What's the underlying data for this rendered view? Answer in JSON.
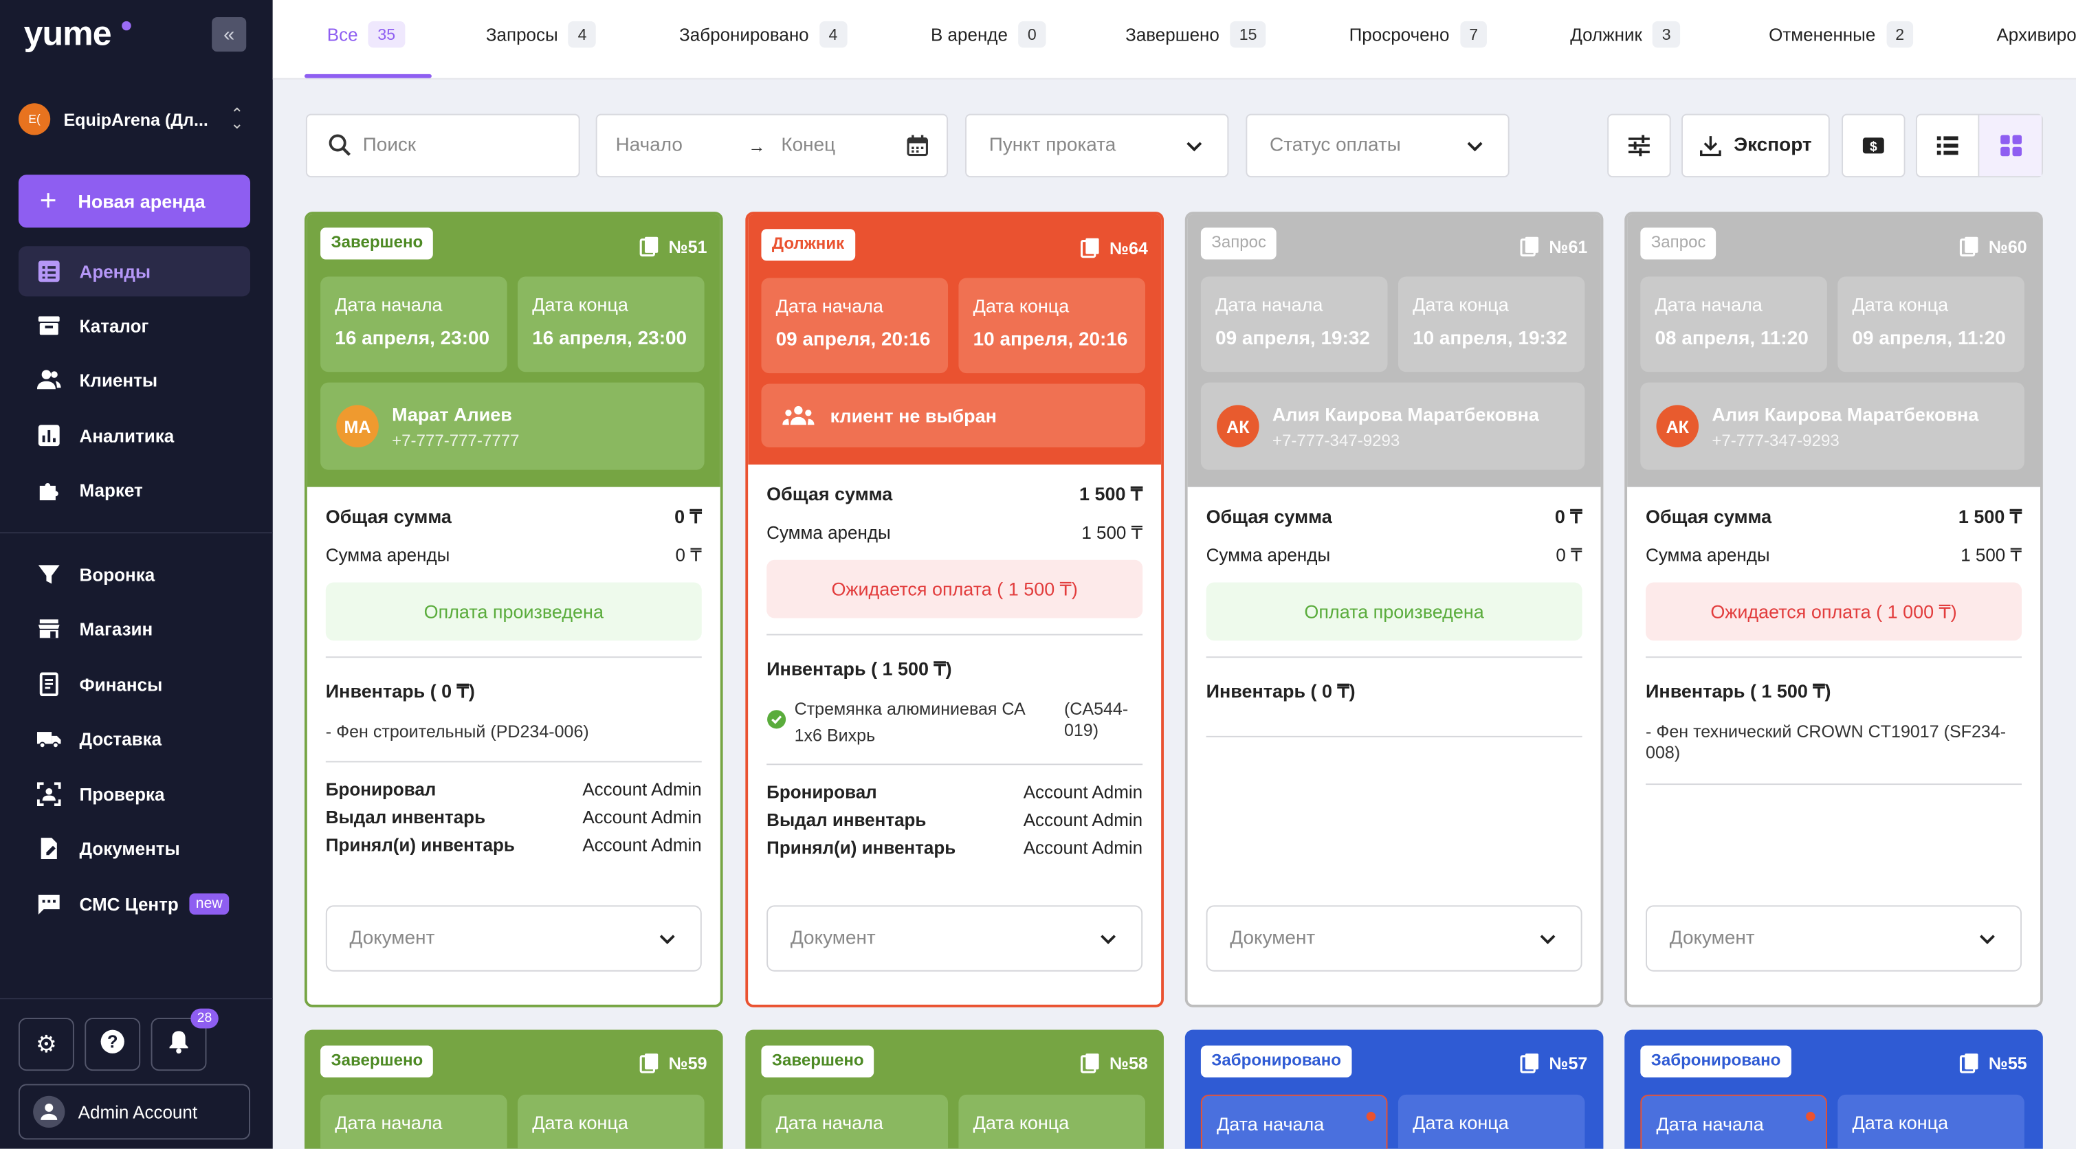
{
  "sidebar": {
    "logo": "yume",
    "org_avatar": "E(",
    "org_name": "EquipArena (Дл...",
    "new_rental": "Новая аренда",
    "nav": [
      {
        "label": "Аренды",
        "icon": "list-icon"
      },
      {
        "label": "Каталог",
        "icon": "archive-icon"
      },
      {
        "label": "Клиенты",
        "icon": "users-icon"
      },
      {
        "label": "Аналитика",
        "icon": "chart-icon"
      },
      {
        "label": "Маркет",
        "icon": "puzzle-icon"
      },
      {
        "label": "Воронка",
        "icon": "funnel-icon"
      },
      {
        "label": "Магазин",
        "icon": "store-icon"
      },
      {
        "label": "Финансы",
        "icon": "receipt-icon"
      },
      {
        "label": "Доставка",
        "icon": "truck-icon"
      },
      {
        "label": "Проверка",
        "icon": "scan-icon"
      },
      {
        "label": "Документы",
        "icon": "document-icon"
      },
      {
        "label": "СМС Центр",
        "icon": "message-icon",
        "badge": "new"
      }
    ],
    "notifications": "28",
    "account": "Admin Account"
  },
  "tabs": [
    {
      "label": "Все",
      "count": "35"
    },
    {
      "label": "Запросы",
      "count": "4"
    },
    {
      "label": "Забронировано",
      "count": "4"
    },
    {
      "label": "В аренде",
      "count": "0"
    },
    {
      "label": "Завершено",
      "count": "15"
    },
    {
      "label": "Просрочено",
      "count": "7"
    },
    {
      "label": "Должник",
      "count": "3"
    },
    {
      "label": "Отмененные",
      "count": "2"
    },
    {
      "label": "Архивиро",
      "count": ""
    }
  ],
  "filters": {
    "search": "Поиск",
    "date_start": "Начало",
    "date_end": "Конец",
    "point": "Пункт проката",
    "payment": "Статус оплаты",
    "export": "Экспорт"
  },
  "colors": {
    "accent": "#8e5ef1",
    "completed": "#76a543",
    "debtor": "#ea5230",
    "request": "#bdbdbd",
    "booked": "#2f5bd4"
  },
  "cards": [
    {
      "status": "Завершено",
      "number": "№51",
      "start_label": "Дата начала",
      "start": "16 апреля, 23:00",
      "end_label": "Дата конца",
      "end": "16 апреля, 23:00",
      "client_initials": "МА",
      "client_name": "Марат Алиев",
      "client_phone": "+7-777-777-7777",
      "total_label": "Общая сумма",
      "total": "0 ₸",
      "rent_label": "Сумма аренды",
      "rent": "0 ₸",
      "payment": "Оплата произведена",
      "inventory_title": "Инвентарь ( 0 ₸)",
      "inventory_item": "- Фен строительный (PD234-006)",
      "booked_by_label": "Бронировал",
      "booked_by": "Account Admin",
      "issued_label": "Выдал инвентарь",
      "issued": "Account Admin",
      "received_label": "Принял(и) инвентарь",
      "received": "Account Admin",
      "document": "Документ"
    },
    {
      "status": "Должник",
      "number": "№64",
      "start_label": "Дата начала",
      "start": "09 апреля, 20:16",
      "end_label": "Дата конца",
      "end": "10 апреля, 20:16",
      "no_client": "клиент не выбран",
      "total_label": "Общая сумма",
      "total": "1 500 ₸",
      "rent_label": "Сумма аренды",
      "rent": "1 500 ₸",
      "payment": "Ожидается оплата ( 1 500 ₸)",
      "inventory_title": "Инвентарь ( 1 500 ₸)",
      "inventory_item": "Стремянка алюминиевая СА 1х6 Вихрь",
      "inventory_code": "(CA544-019)",
      "booked_by_label": "Бронировал",
      "booked_by": "Account Admin",
      "issued_label": "Выдал инвентарь",
      "issued": "Account Admin",
      "received_label": "Принял(и) инвентарь",
      "received": "Account Admin",
      "document": "Документ"
    },
    {
      "status": "Запрос",
      "number": "№61",
      "start_label": "Дата начала",
      "start": "09 апреля, 19:32",
      "end_label": "Дата конца",
      "end": "10 апреля, 19:32",
      "client_initials": "АК",
      "client_name": "Алия Каирова Маратбековна",
      "client_phone": "+7-777-347-9293",
      "total_label": "Общая сумма",
      "total": "0 ₸",
      "rent_label": "Сумма аренды",
      "rent": "0 ₸",
      "payment": "Оплата произведена",
      "inventory_title": "Инвентарь ( 0 ₸)",
      "document": "Документ"
    },
    {
      "status": "Запрос",
      "number": "№60",
      "start_label": "Дата начала",
      "start": "08 апреля, 11:20",
      "end_label": "Дата конца",
      "end": "09 апреля, 11:20",
      "client_initials": "АК",
      "client_name": "Алия Каирова Маратбековна",
      "client_phone": "+7-777-347-9293",
      "total_label": "Общая сумма",
      "total": "1 500 ₸",
      "rent_label": "Сумма аренды",
      "rent": "1 500 ₸",
      "payment": "Ожидается оплата ( 1 000 ₸)",
      "inventory_title": "Инвентарь ( 1 500 ₸)",
      "inventory_item": "- Фен технический CROWN CT19017 (SF234-008)",
      "document": "Документ"
    }
  ],
  "cards_row2": [
    {
      "status": "Завершено",
      "number": "№59",
      "start_label": "Дата начала",
      "end_label": "Дата конца"
    },
    {
      "status": "Завершено",
      "number": "№58",
      "start_label": "Дата начала",
      "end_label": "Дата конца"
    },
    {
      "status": "Забронировано",
      "number": "№57",
      "start_label": "Дата начала",
      "end_label": "Дата конца"
    },
    {
      "status": "Забронировано",
      "number": "№55",
      "start_label": "Дата начала",
      "end_label": "Дата конца"
    }
  ]
}
